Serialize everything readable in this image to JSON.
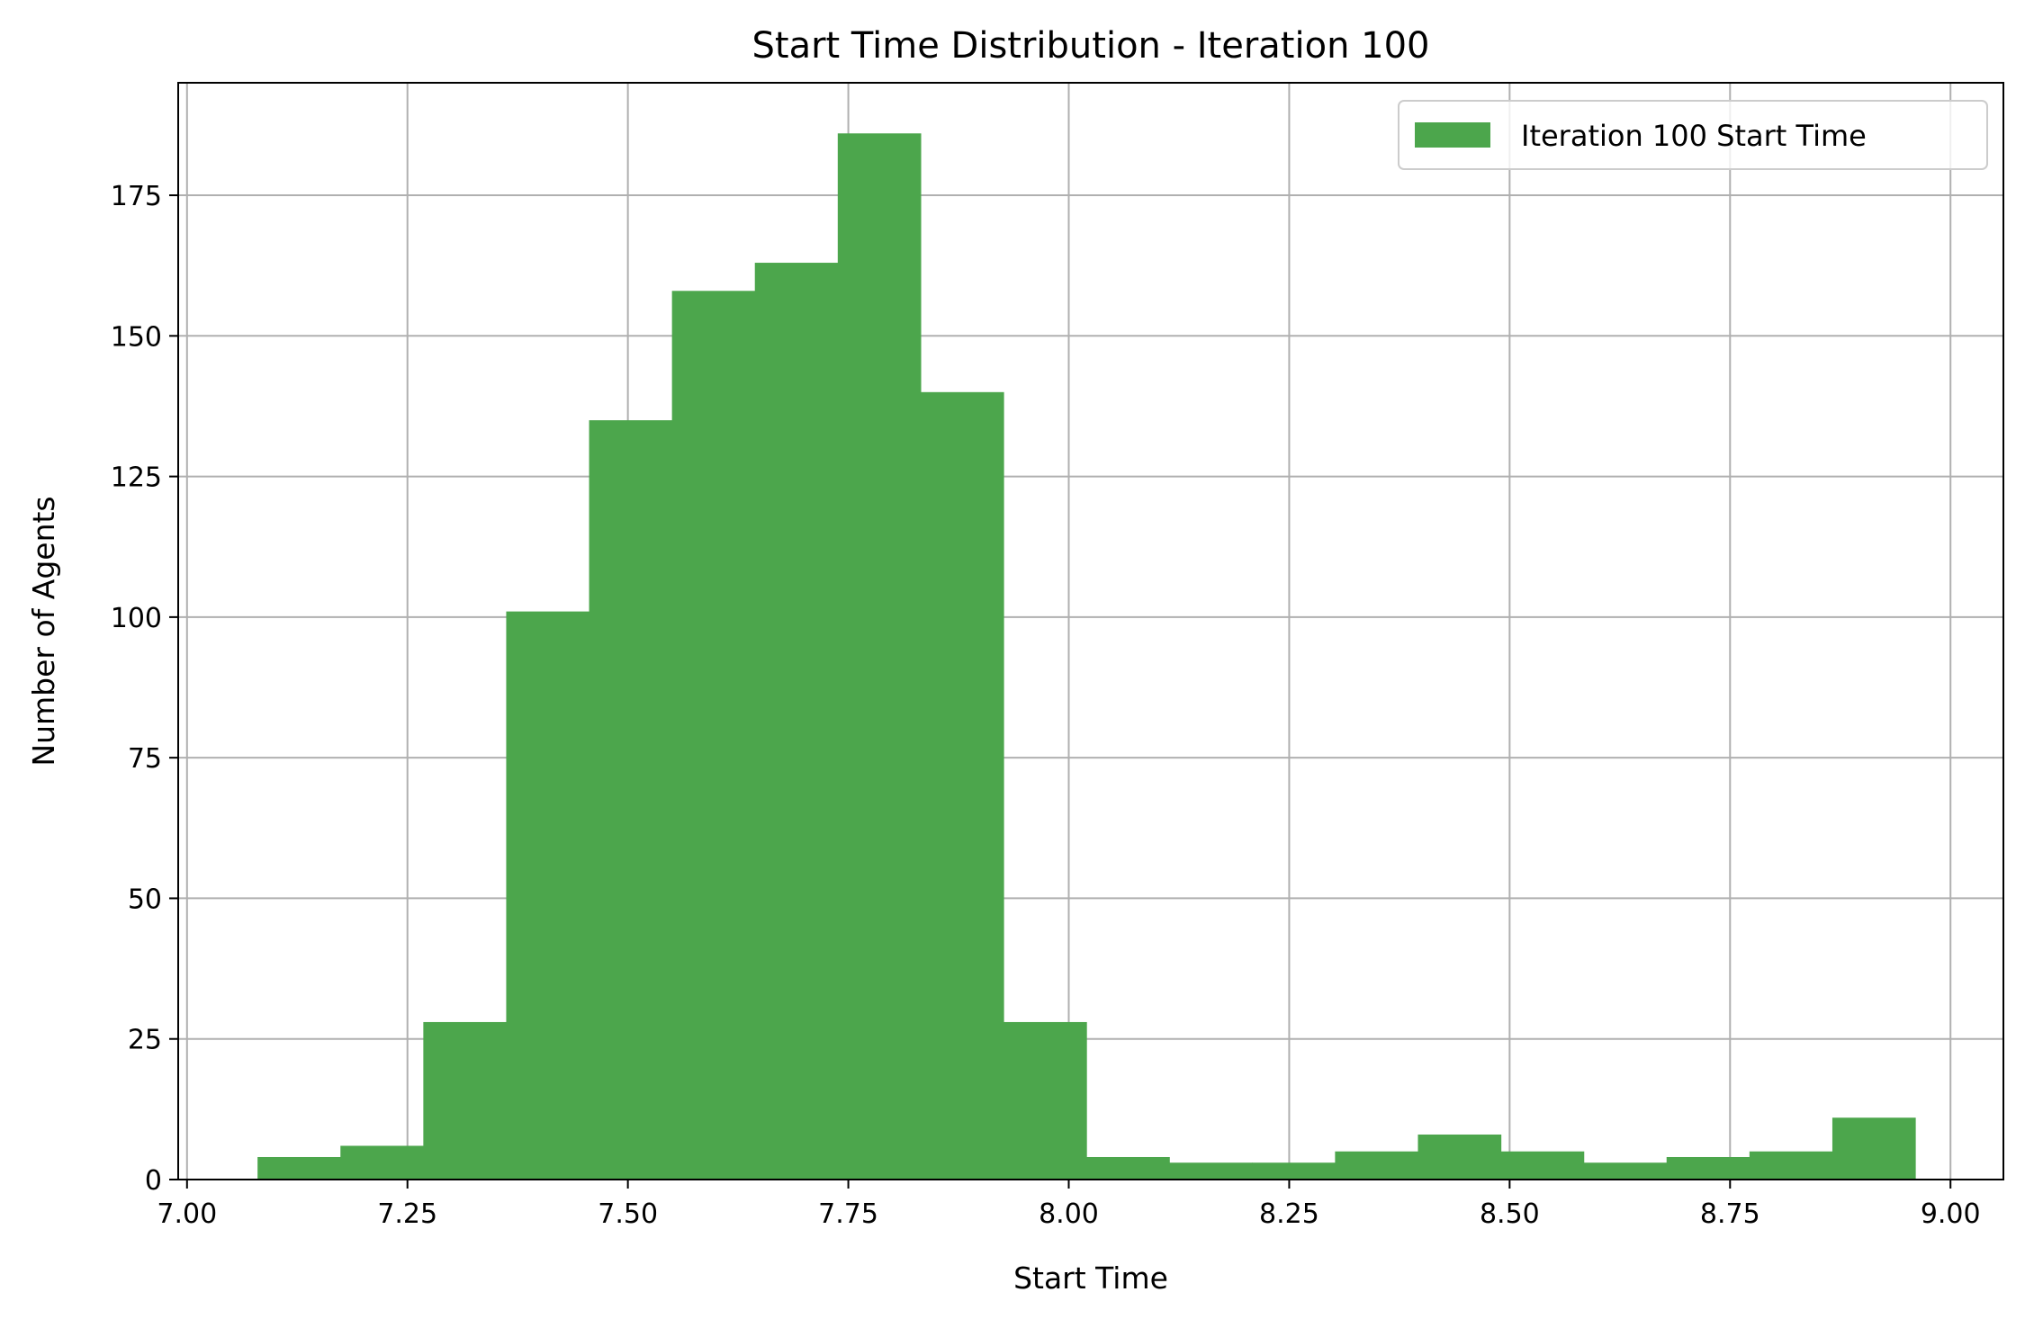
{
  "chart_data": {
    "type": "bar",
    "title": "Start Time Distribution - Iteration 100",
    "xlabel": "Start Time",
    "ylabel": "Number of Agents",
    "xlim": [
      6.99,
      9.06
    ],
    "ylim": [
      0,
      195
    ],
    "x_ticks": [
      7.0,
      7.25,
      7.5,
      7.75,
      8.0,
      8.25,
      8.5,
      8.75,
      9.0
    ],
    "x_tick_labels": [
      "7.00",
      "7.25",
      "7.50",
      "7.75",
      "8.00",
      "8.25",
      "8.50",
      "8.75",
      "9.00"
    ],
    "y_ticks": [
      0,
      25,
      50,
      75,
      100,
      125,
      150,
      175
    ],
    "y_tick_labels": [
      "0",
      "25",
      "50",
      "75",
      "100",
      "125",
      "150",
      "175"
    ],
    "grid": true,
    "legend_position": "top-right",
    "bar_color": "#4ca64c",
    "series": [
      {
        "name": "Iteration 100 Start Time",
        "bins": [
          [
            7.08,
            7.174,
            4
          ],
          [
            7.174,
            7.268,
            6
          ],
          [
            7.268,
            7.362,
            28
          ],
          [
            7.362,
            7.456,
            101
          ],
          [
            7.456,
            7.55,
            135
          ],
          [
            7.55,
            7.644,
            158
          ],
          [
            7.644,
            7.738,
            163
          ],
          [
            7.738,
            7.832,
            186
          ],
          [
            7.832,
            7.926,
            140
          ],
          [
            7.926,
            8.02,
            28
          ],
          [
            8.02,
            8.114,
            4
          ],
          [
            8.114,
            8.208,
            3
          ],
          [
            8.208,
            8.302,
            3
          ],
          [
            8.302,
            8.396,
            5
          ],
          [
            8.396,
            8.49,
            8
          ],
          [
            8.49,
            8.584,
            5
          ],
          [
            8.584,
            8.678,
            3
          ],
          [
            8.678,
            8.772,
            4
          ],
          [
            8.772,
            8.866,
            5
          ],
          [
            8.866,
            8.96,
            11
          ]
        ]
      }
    ]
  }
}
